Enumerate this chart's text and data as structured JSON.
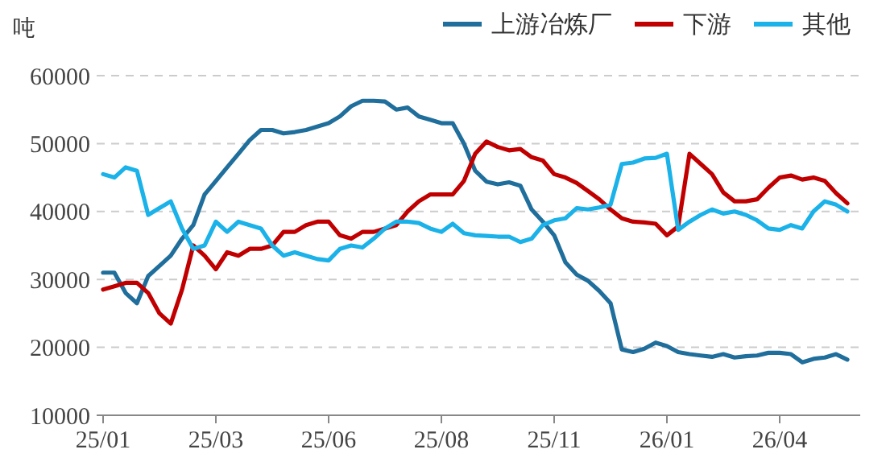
{
  "chart_data": {
    "type": "line",
    "ylabel": "吨",
    "categories": [
      "25/01",
      null,
      null,
      null,
      null,
      null,
      null,
      null,
      null,
      null,
      "25/03",
      null,
      null,
      null,
      null,
      null,
      null,
      null,
      null,
      null,
      "25/06",
      null,
      null,
      null,
      null,
      null,
      null,
      null,
      null,
      null,
      "25/08",
      null,
      null,
      null,
      null,
      null,
      null,
      null,
      null,
      null,
      "25/11",
      null,
      null,
      null,
      null,
      null,
      null,
      null,
      null,
      null,
      "26/01",
      null,
      null,
      null,
      null,
      null,
      null,
      null,
      null,
      null,
      "26/04",
      null,
      null,
      null,
      null,
      null,
      null
    ],
    "ylim": [
      10000,
      60000
    ],
    "yticks": [
      10000,
      20000,
      30000,
      40000,
      50000,
      60000
    ],
    "grid": "y",
    "legend": "top right",
    "line_style": "solid",
    "marker": "none",
    "series": [
      {
        "name": "上游冶炼厂",
        "color": "#1f6e9c",
        "values": [
          31000,
          31000,
          28000,
          26500,
          30500,
          32000,
          33500,
          36000,
          38000,
          42500,
          44500,
          46500,
          48500,
          50500,
          52000,
          52000,
          51500,
          51700,
          52000,
          52500,
          53000,
          54000,
          55500,
          56300,
          56300,
          56200,
          55000,
          55300,
          54000,
          53500,
          53000,
          53000,
          50000,
          46000,
          44400,
          44000,
          44300,
          43800,
          40300,
          38500,
          36500,
          32500,
          30700,
          29800,
          28300,
          26500,
          19700,
          19300,
          19800,
          20700,
          20200,
          19300,
          19000,
          18800,
          18600,
          19000,
          18500,
          18700,
          18800,
          19200,
          19200,
          19000,
          17800,
          18300,
          18500,
          19000,
          18200
        ]
      },
      {
        "name": "下游",
        "color": "#c00000",
        "values": [
          28500,
          29000,
          29500,
          29500,
          28000,
          25000,
          23500,
          28500,
          35000,
          33500,
          31500,
          34000,
          33500,
          34500,
          34500,
          35000,
          37000,
          37000,
          38000,
          38500,
          38500,
          36500,
          36000,
          37000,
          37000,
          37500,
          38000,
          40000,
          41500,
          42500,
          42500,
          42500,
          44500,
          48500,
          50300,
          49500,
          49000,
          49200,
          48000,
          47500,
          45500,
          45000,
          44200,
          43000,
          41800,
          40300,
          39000,
          38500,
          38400,
          38200,
          36500,
          37800,
          48500,
          47000,
          45500,
          42800,
          41500,
          41500,
          41800,
          43500,
          45000,
          45300,
          44700,
          45000,
          44500,
          42700,
          41200
        ]
      },
      {
        "name": "其他",
        "color": "#1ab2e8",
        "values": [
          45500,
          45000,
          46500,
          46000,
          39500,
          40500,
          41500,
          37500,
          34500,
          35000,
          38500,
          37000,
          38500,
          38000,
          37500,
          35000,
          33500,
          34000,
          33500,
          33000,
          32800,
          34500,
          35000,
          34700,
          36000,
          37500,
          38500,
          38500,
          38300,
          37500,
          37000,
          38200,
          36800,
          36500,
          36400,
          36300,
          36300,
          35500,
          36000,
          38000,
          38700,
          39000,
          40500,
          40300,
          40600,
          41000,
          47000,
          47200,
          47800,
          47900,
          48500,
          37300,
          38500,
          39500,
          40300,
          39700,
          40000,
          39500,
          38700,
          37500,
          37300,
          38000,
          37500,
          40000,
          41500,
          41000,
          40000
        ]
      }
    ]
  }
}
